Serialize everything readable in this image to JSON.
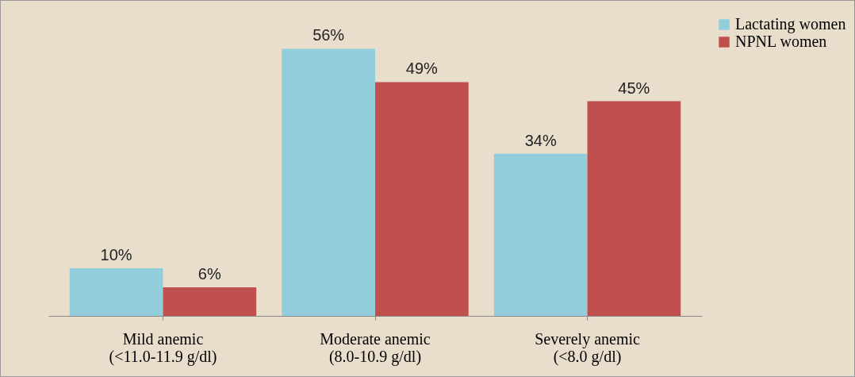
{
  "chart_data": {
    "type": "bar",
    "categories": [
      "Mild anemic\n(<11.0-11.9 g/dl)",
      "Moderate anemic\n(8.0-10.9 g/dl)",
      "Severely anemic\n(<8.0 g/dl)"
    ],
    "series": [
      {
        "name": "Lactating women",
        "color": "#92cddc",
        "values": [
          10,
          56,
          34
        ],
        "value_labels": [
          "10%",
          "56%",
          "34%"
        ]
      },
      {
        "name": "NPNL women",
        "color": "#c0504d",
        "values": [
          6,
          49,
          45
        ],
        "value_labels": [
          "6%",
          "49%",
          "45%"
        ]
      }
    ],
    "legend": "right",
    "grid": false
  }
}
